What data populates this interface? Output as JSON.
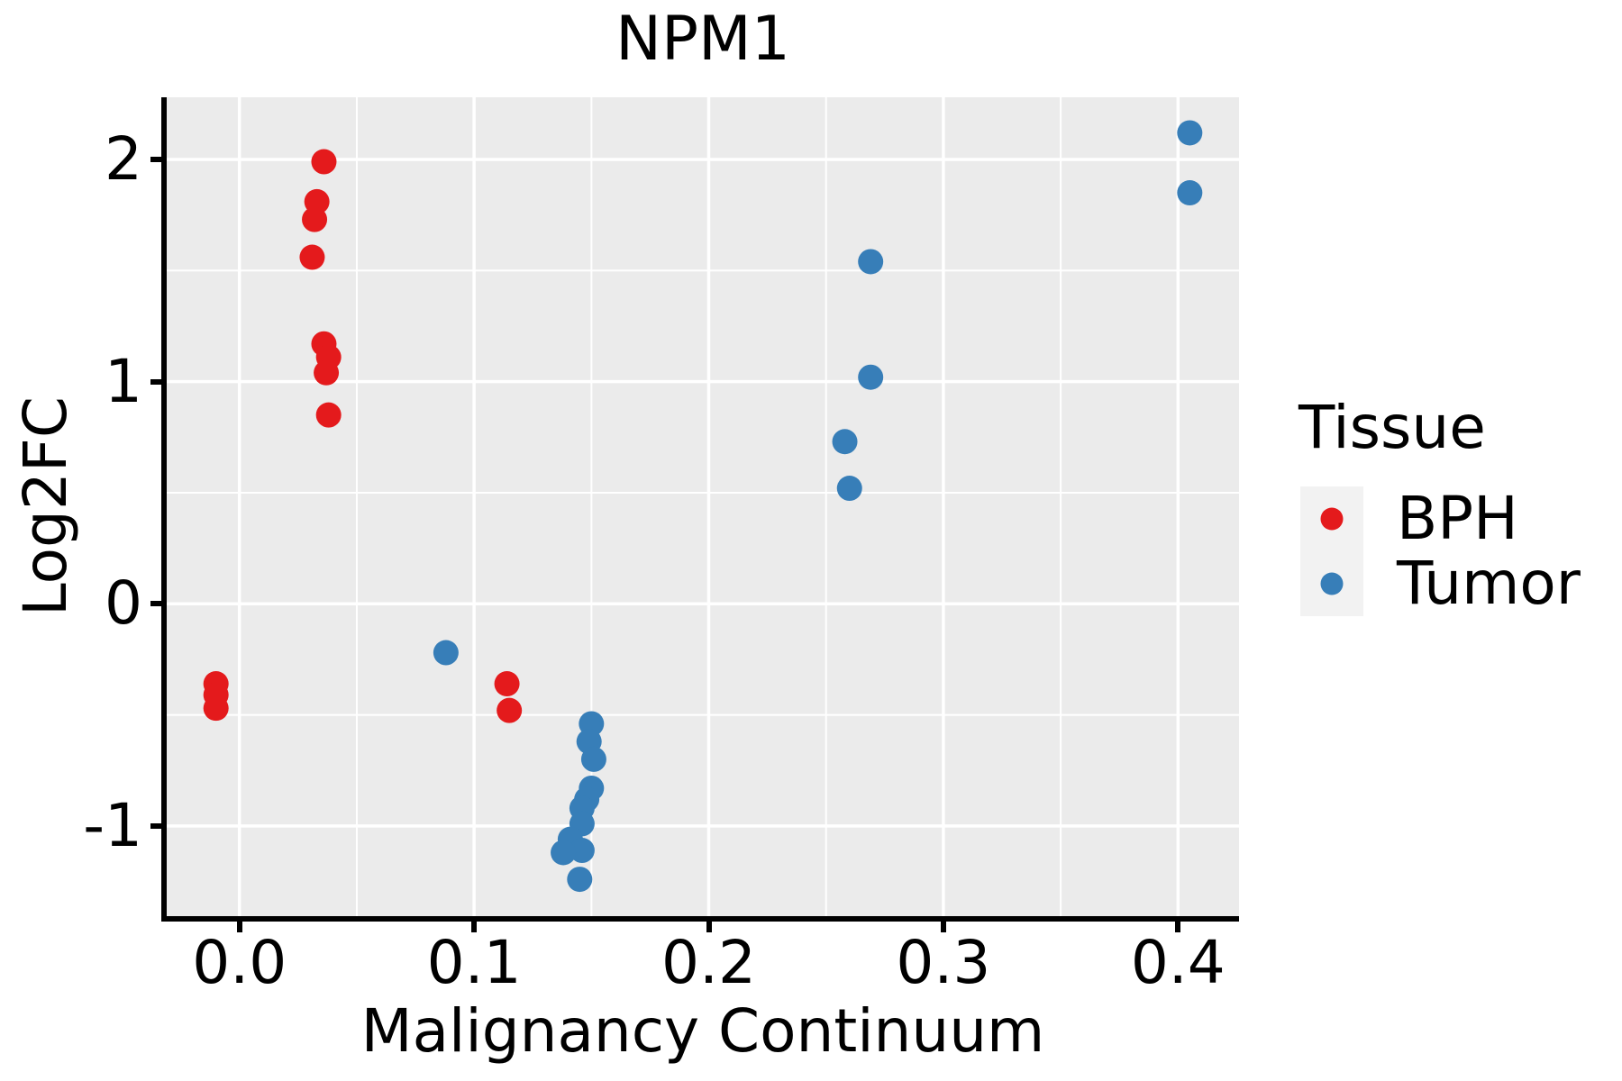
{
  "title": "NPM1",
  "x_axis": {
    "label": "Malignancy Continuum",
    "tick_labels": [
      "0.0",
      "0.1",
      "0.2",
      "0.3",
      "0.4"
    ],
    "tick_values": [
      0.0,
      0.1,
      0.2,
      0.3,
      0.4
    ],
    "minor_tick_values": [
      0.05,
      0.15,
      0.25,
      0.35
    ]
  },
  "y_axis": {
    "label": "Log2FC",
    "tick_labels": [
      "-1",
      "0",
      "1",
      "2"
    ],
    "tick_values": [
      -1,
      0,
      1,
      2
    ],
    "minor_tick_values": [
      -0.5,
      0.5,
      1.5
    ]
  },
  "legend": {
    "title": "Tissue",
    "entries": [
      {
        "label": "BPH",
        "color": "#E41A1C"
      },
      {
        "label": "Tumor",
        "color": "#377EB8"
      }
    ]
  },
  "colors": {
    "panel_background": "#EBEBEB",
    "gridline": "#FFFFFF",
    "axis_line": "#000000",
    "text": "#000000",
    "legend_key_background": "#F2F2F2"
  },
  "chart_data": {
    "type": "scatter",
    "title": "NPM1",
    "xlabel": "Malignancy Continuum",
    "ylabel": "Log2FC",
    "xlim": [
      -0.031,
      0.426
    ],
    "ylim": [
      -1.41,
      2.28
    ],
    "grid": "white major and minor gridlines on gray panel",
    "legend_position": "right",
    "marker_radius_px": 14,
    "series": [
      {
        "name": "BPH",
        "color": "#E41A1C",
        "points": [
          [
            -0.01,
            -0.36
          ],
          [
            -0.01,
            -0.41
          ],
          [
            -0.01,
            -0.47
          ],
          [
            0.036,
            1.99
          ],
          [
            0.033,
            1.81
          ],
          [
            0.032,
            1.73
          ],
          [
            0.031,
            1.56
          ],
          [
            0.036,
            1.17
          ],
          [
            0.038,
            1.11
          ],
          [
            0.037,
            1.04
          ],
          [
            0.038,
            0.85
          ],
          [
            0.114,
            -0.36
          ],
          [
            0.115,
            -0.48
          ]
        ]
      },
      {
        "name": "Tumor",
        "color": "#377EB8",
        "points": [
          [
            0.088,
            -0.22
          ],
          [
            0.15,
            -0.54
          ],
          [
            0.149,
            -0.62
          ],
          [
            0.151,
            -0.7
          ],
          [
            0.15,
            -0.83
          ],
          [
            0.148,
            -0.88
          ],
          [
            0.146,
            -0.92
          ],
          [
            0.146,
            -0.99
          ],
          [
            0.141,
            -1.06
          ],
          [
            0.146,
            -1.11
          ],
          [
            0.138,
            -1.12
          ],
          [
            0.145,
            -1.24
          ],
          [
            0.269,
            1.54
          ],
          [
            0.269,
            1.02
          ],
          [
            0.258,
            0.73
          ],
          [
            0.26,
            0.52
          ],
          [
            0.405,
            2.12
          ],
          [
            0.405,
            1.85
          ]
        ]
      }
    ]
  }
}
